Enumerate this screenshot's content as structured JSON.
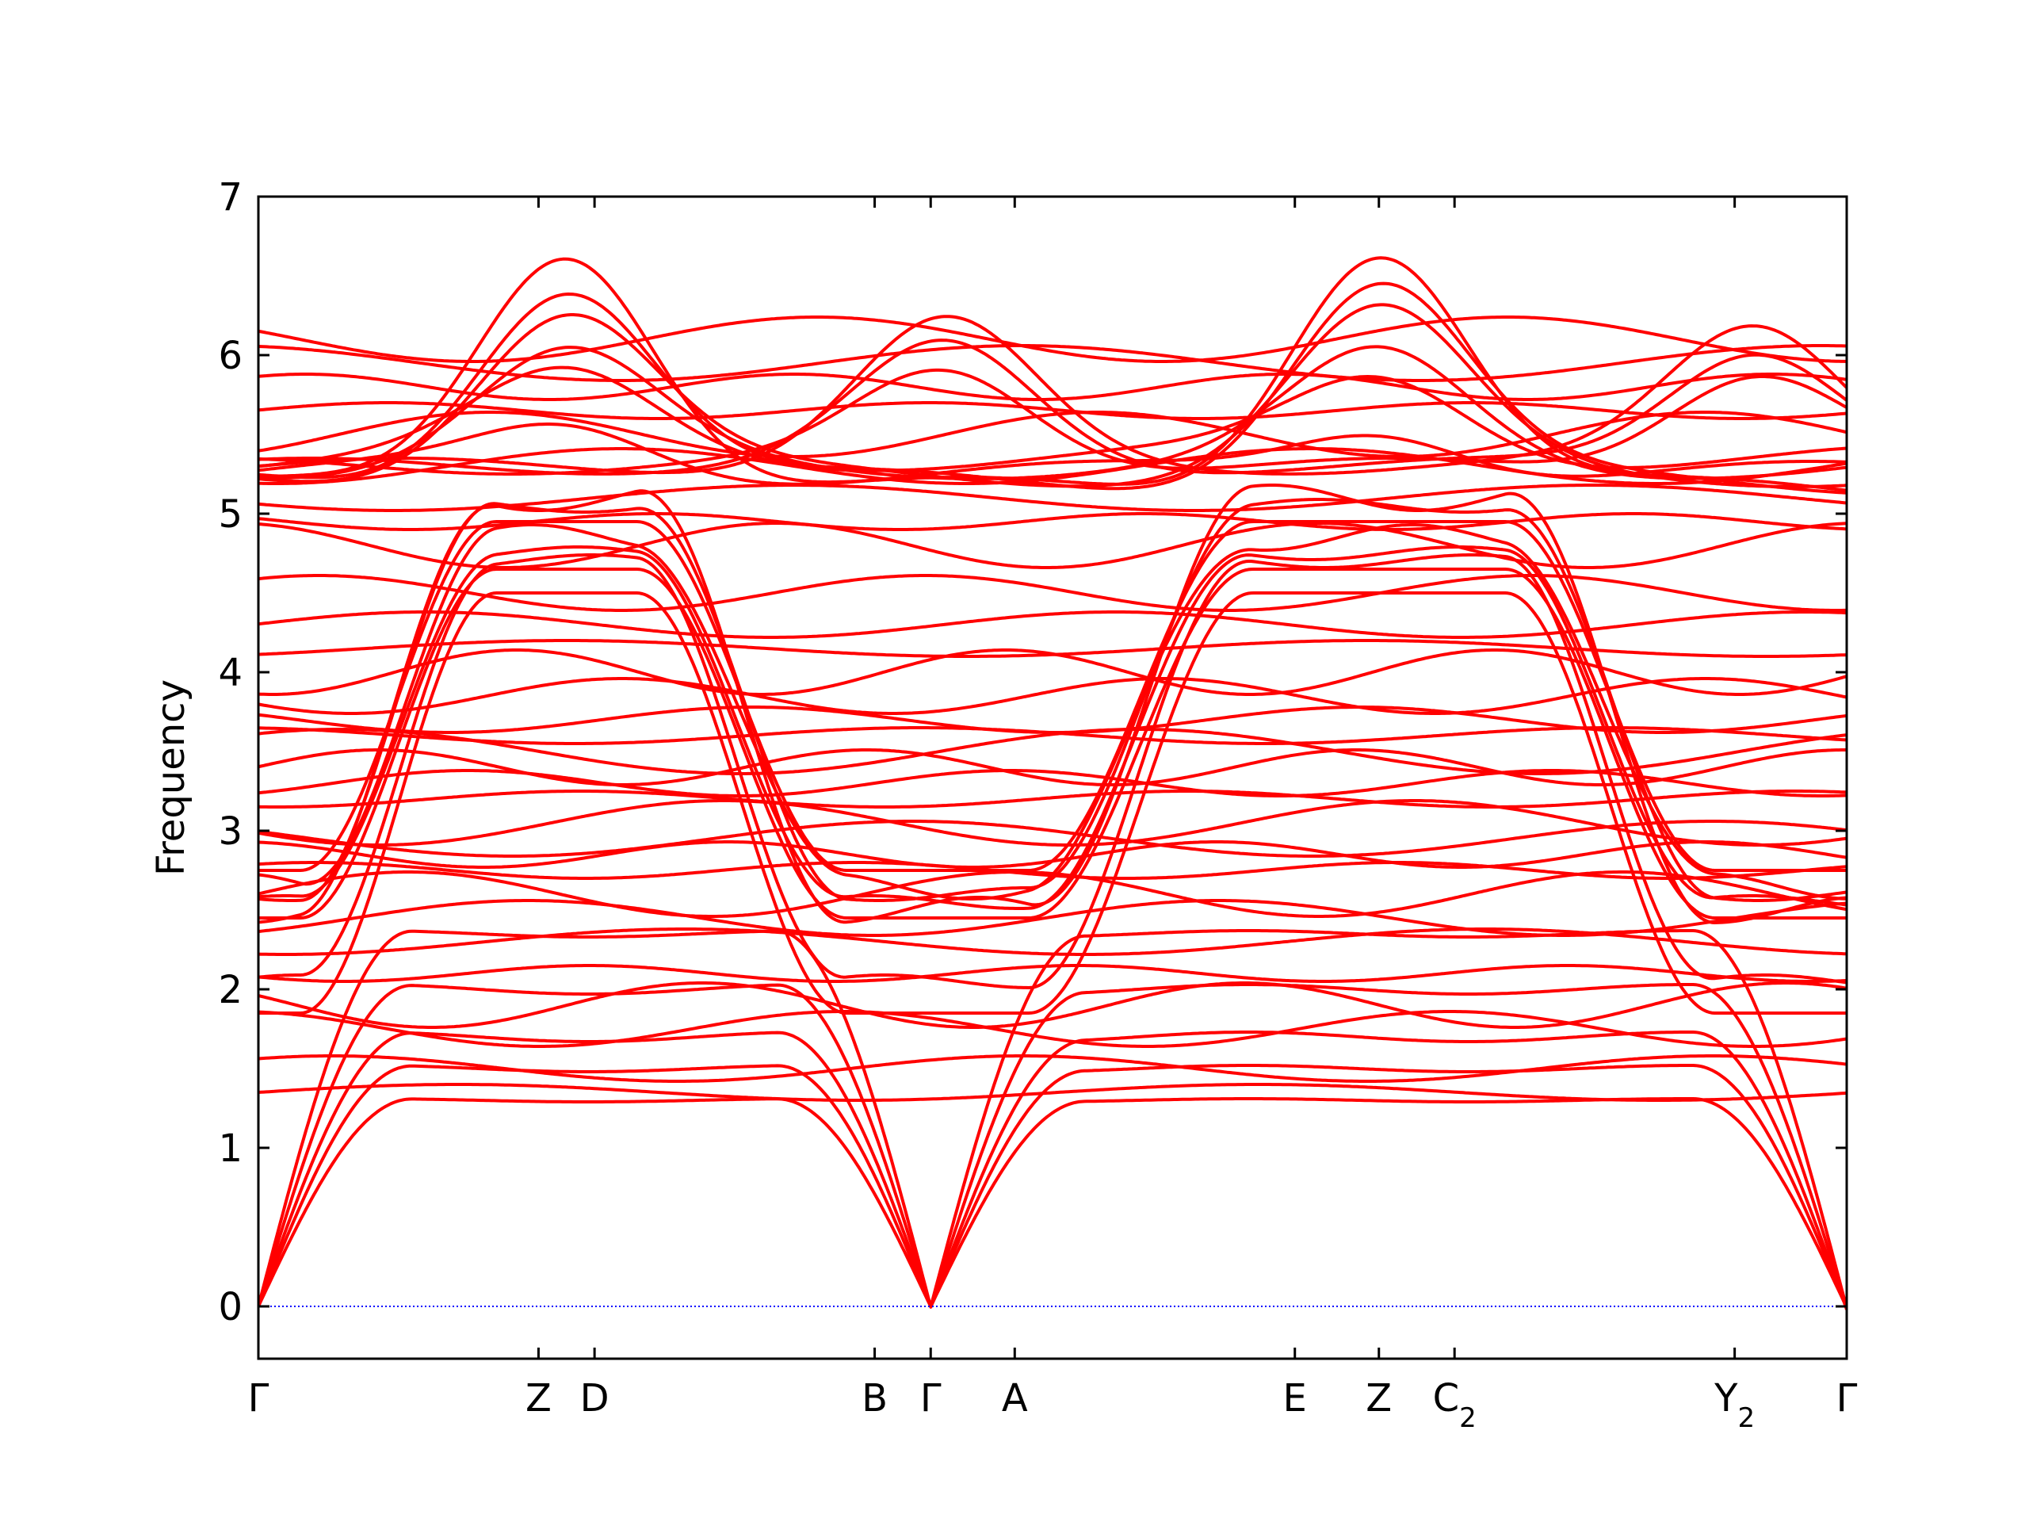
{
  "chart_data": {
    "type": "line",
    "title": "",
    "xlabel": "",
    "ylabel": "Frequency",
    "ylim": [
      -0.33,
      7
    ],
    "grid": false,
    "legend": "none",
    "line_color": "#ff0000",
    "zero_line_color": "#0000ff",
    "y_ticks": [
      0,
      1,
      2,
      3,
      4,
      5,
      6,
      7
    ],
    "x_range": [
      0,
      5.67
    ],
    "k_points": [
      {
        "label": "Γ",
        "sub": "",
        "x": 0.0
      },
      {
        "label": "Z",
        "sub": "",
        "x": 1.0
      },
      {
        "label": "D",
        "sub": "",
        "x": 1.2
      },
      {
        "label": "B",
        "sub": "",
        "x": 2.2
      },
      {
        "label": "Γ",
        "sub": "",
        "x": 2.4
      },
      {
        "label": "A",
        "sub": "",
        "x": 2.7
      },
      {
        "label": "E",
        "sub": "",
        "x": 3.7
      },
      {
        "label": "Z",
        "sub": "",
        "x": 4.0
      },
      {
        "label": "C",
        "sub": "2",
        "x": 4.27
      },
      {
        "label": "Y",
        "sub": "2",
        "x": 5.27
      },
      {
        "label": "Γ",
        "sub": "",
        "x": 5.67
      }
    ],
    "band_families": [
      {
        "name_hint": "acoustic-1",
        "kind": "acoustic",
        "gamma_end": 1.55,
        "edge_end": 1.45,
        "mid": 0.0
      },
      {
        "name_hint": "acoustic-2",
        "kind": "acoustic",
        "gamma_end": 2.05,
        "edge_end": 2.0,
        "mid": 0.0
      },
      {
        "name_hint": "acoustic-3",
        "kind": "acoustic",
        "gamma_end": 1.5,
        "edge_end": 1.35,
        "mid": 0.0
      },
      {
        "name_hint": "cosine-band",
        "kind": "cosine",
        "gamma_end": 2.65,
        "edge_end": 4.85,
        "mid": 0.0
      }
    ],
    "flat_levels": [
      1.35,
      1.5,
      1.75,
      1.9,
      2.1,
      2.3,
      2.45,
      2.6,
      2.75,
      2.85,
      2.95,
      3.05,
      3.2,
      3.3,
      3.4,
      3.5,
      3.6,
      3.7,
      3.85,
      4.0,
      4.15,
      4.3,
      4.5,
      4.8,
      4.95,
      5.1,
      5.3,
      5.5,
      5.65,
      5.8,
      5.95,
      6.1
    ],
    "cosine_bands": [
      {
        "low": 2.45,
        "high": 4.65
      },
      {
        "low": 2.55,
        "high": 4.75
      },
      {
        "low": 2.65,
        "high": 4.85
      },
      {
        "low": 2.75,
        "high": 4.95
      },
      {
        "low": 2.6,
        "high": 5.05
      },
      {
        "low": 2.5,
        "high": 5.1
      },
      {
        "low": 1.85,
        "high": 4.5
      },
      {
        "low": 2.05,
        "high": 4.7
      }
    ],
    "upper_bands": [
      {
        "low": 5.15,
        "high": 6.68
      },
      {
        "low": 5.2,
        "high": 6.45
      },
      {
        "low": 5.25,
        "high": 6.25
      },
      {
        "low": 5.3,
        "high": 5.98
      },
      {
        "low": 5.35,
        "high": 5.85
      },
      {
        "low": 5.25,
        "high": 5.55
      }
    ]
  }
}
